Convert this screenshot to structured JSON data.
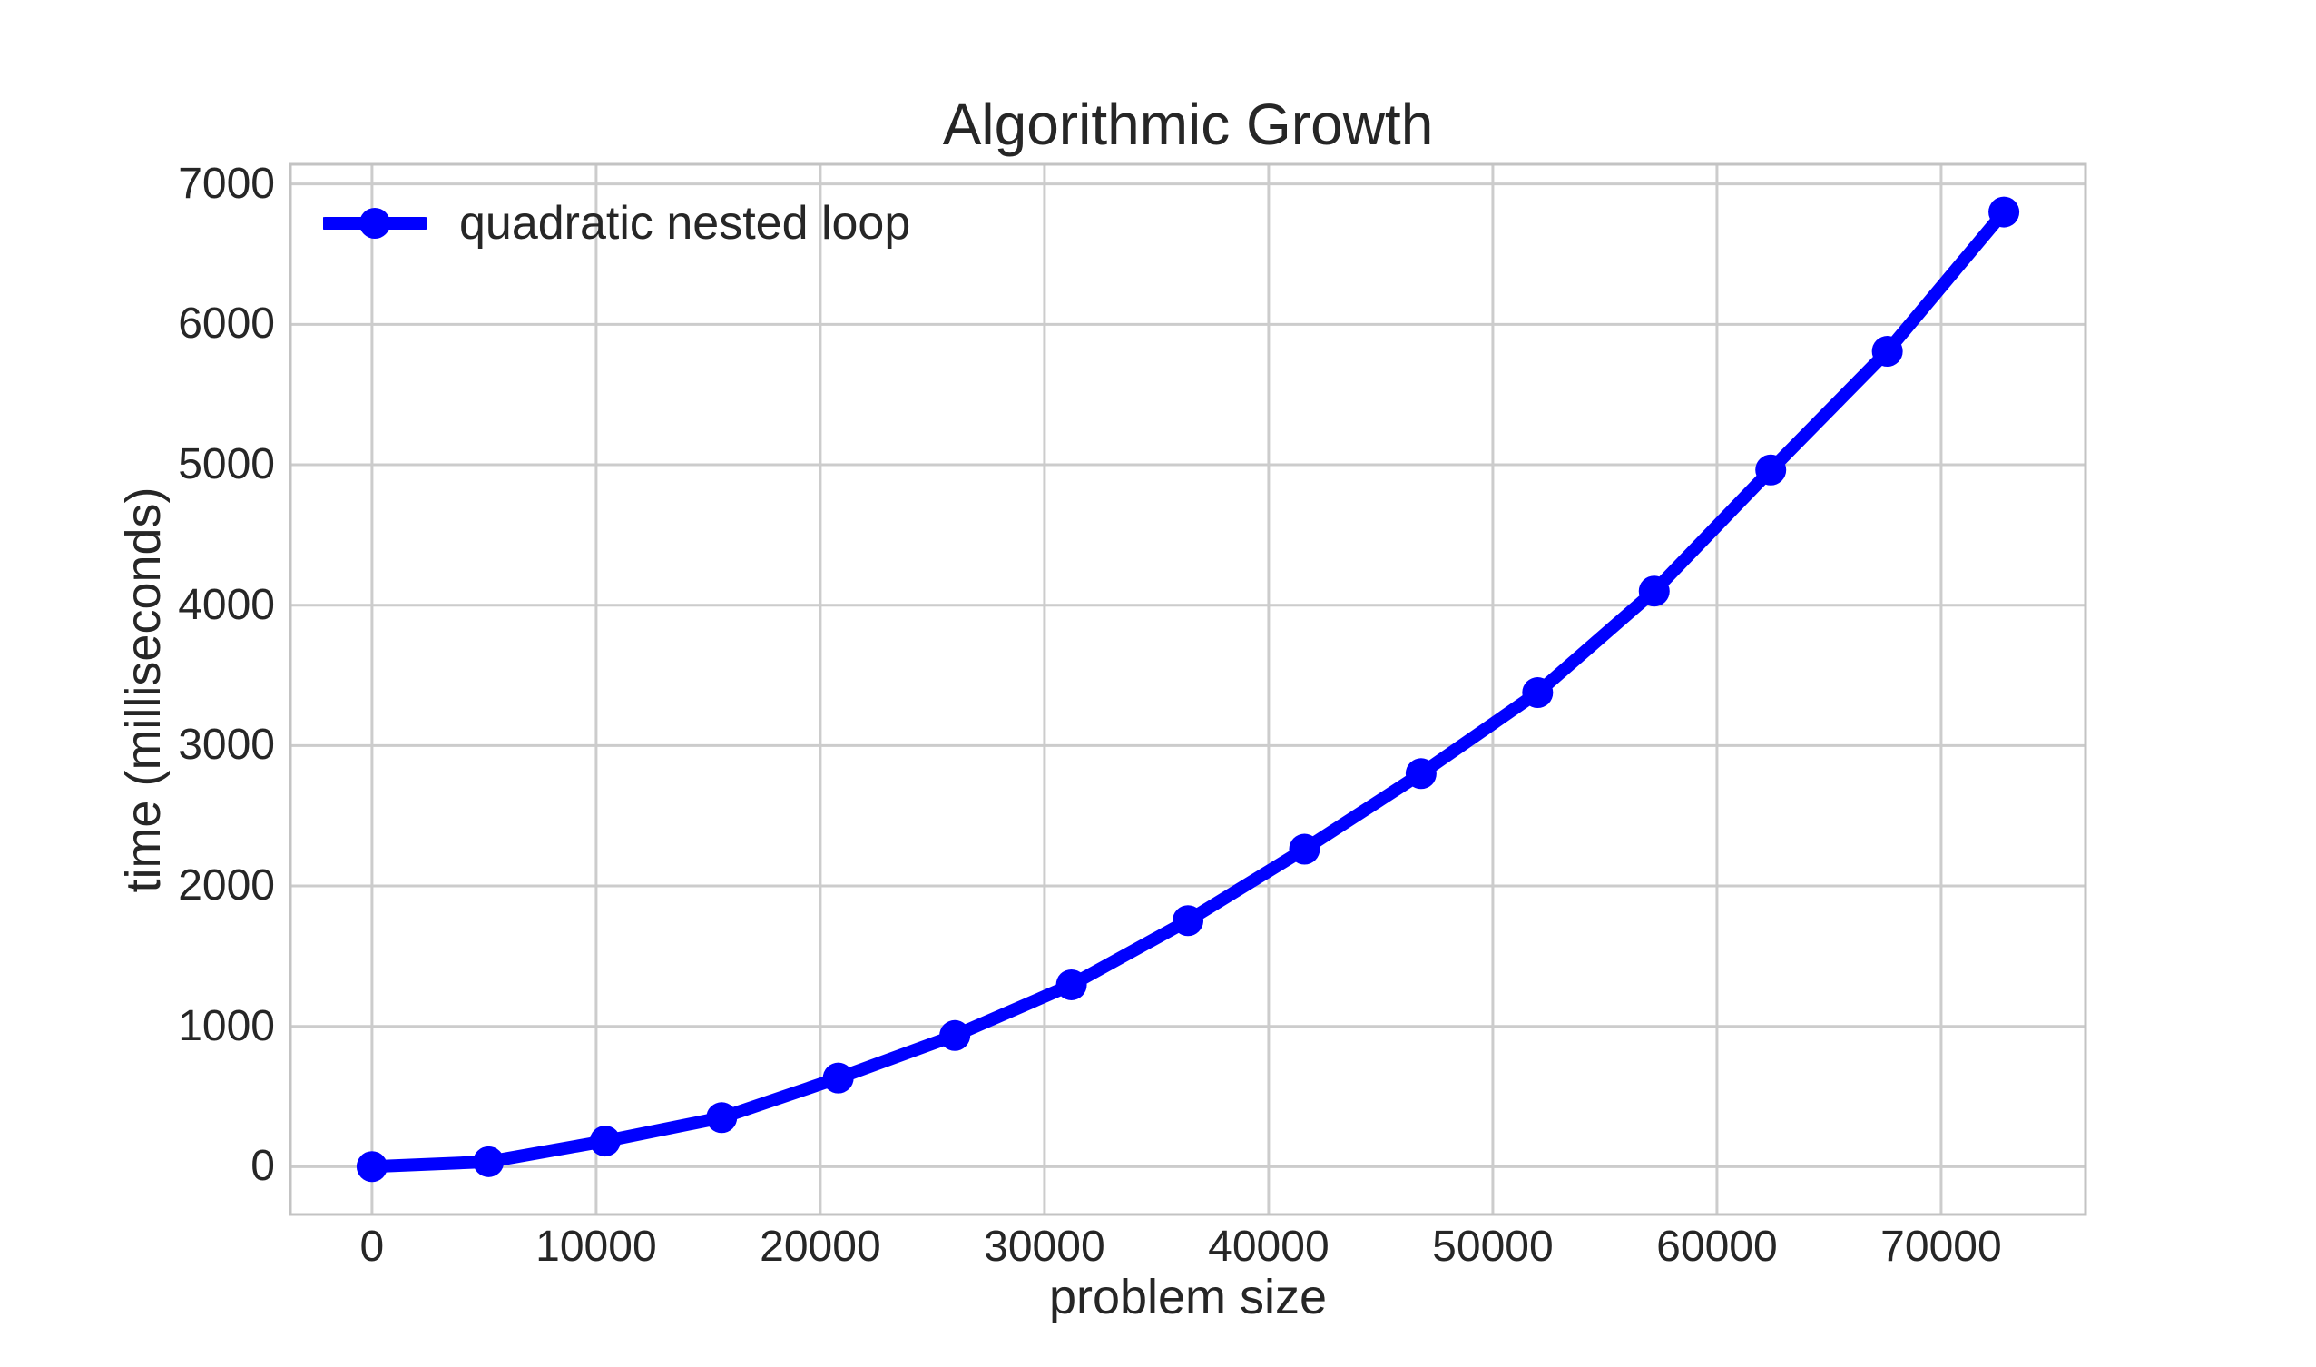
{
  "chart_data": {
    "type": "line",
    "title": "Algorithmic Growth",
    "xlabel": "problem size",
    "ylabel": "time (milliseconds)",
    "grid": true,
    "legend": {
      "position": "upper left",
      "frame": false,
      "entries": [
        {
          "label": "quadratic nested loop",
          "color": "#0000ff",
          "marker": "circle"
        }
      ]
    },
    "series": [
      {
        "name": "quadratic nested loop",
        "color": "#0000ff",
        "x": [
          0,
          5200,
          10400,
          15600,
          20800,
          26000,
          31200,
          36400,
          41600,
          46800,
          52000,
          57200,
          62400,
          67600,
          72800
        ],
        "y": [
          1,
          36,
          183,
          350,
          632,
          935,
          1296,
          1753,
          2262,
          2800,
          3377,
          4100,
          4963,
          5808,
          6800
        ]
      }
    ],
    "xlim": [
      -3640,
      76440
    ],
    "ylim": [
      -340,
      7140
    ],
    "xticks": [
      0,
      10000,
      20000,
      30000,
      40000,
      50000,
      60000,
      70000
    ],
    "yticks": [
      0,
      1000,
      2000,
      3000,
      4000,
      5000,
      6000,
      7000
    ]
  },
  "style": {
    "background": "#ffffff",
    "accent": "#0000ff",
    "grid_color": "#cccccc",
    "spine_color": "#c3c3c3",
    "text_color": "#262626"
  }
}
